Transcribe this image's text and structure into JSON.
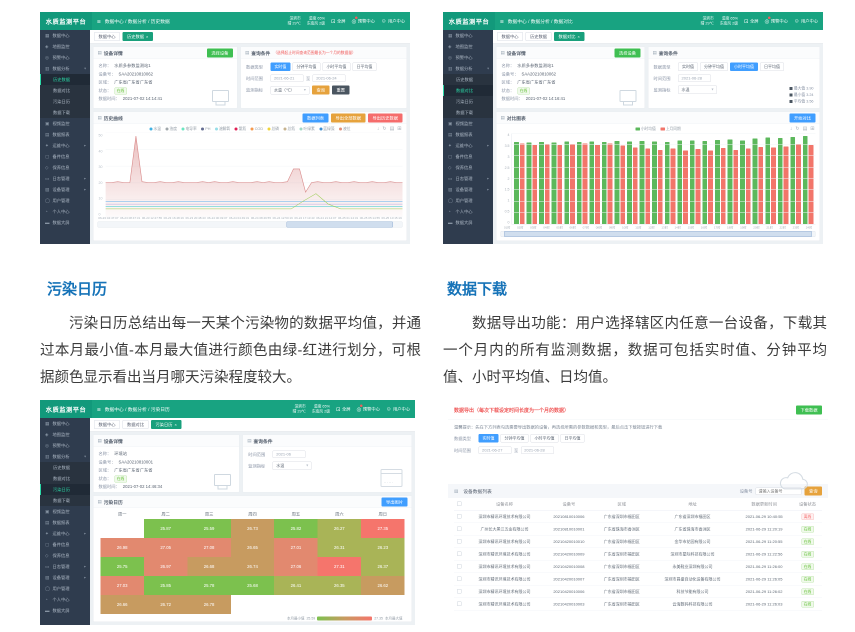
{
  "sections": {
    "left": {
      "title": "污染日历",
      "body": "污染日历总结出每一天某个污染物的数据平均值，并通过本月最小值-本月最大值进行颜色由绿-红进行划分，可根据颜色显示看出当月哪天污染程度较大。"
    },
    "right": {
      "title": "数据下载",
      "body": "数据导出功能：用户选择辖区内任意一台设备，下载其一个月内的所有监测数据，数据可包括实时值、分钟平均值、小时平均值、日均值。"
    }
  },
  "icons": {
    "hamburger": "≡",
    "fullscreen": "⊡",
    "bell": "◎",
    "user": "☺",
    "panel": "▤",
    "caret": "▾",
    "close": "×",
    "tool_download": "↓",
    "tool_refresh": "↻",
    "tool_view": "▤",
    "tool_zoom": "⊞"
  },
  "colors": {
    "brand_green": "#18a381",
    "blue": "#409eff",
    "orange": "#e6a23c",
    "red": "#f56c6c",
    "sidebar": "#2f3c4e",
    "heading_blue": "#1673b8",
    "cells": {
      "green": "#7cc14e",
      "olive": "#a9b457",
      "tan": "#c79b60",
      "salmon": "#e2896f",
      "red": "#f5756c"
    }
  },
  "common": {
    "logo": "水质监测平台",
    "nav_right": {
      "stat1_top": "深圳市",
      "stat1_bottom": "晴 29℃",
      "stat2_top": "湿度 65%",
      "stat2_bottom": "东南风 2级",
      "fullscreen": "全屏",
      "alerts": "预警中心",
      "user": "用户中心"
    },
    "sidebar": [
      {
        "label": "数据中心",
        "glyph": "▦"
      },
      {
        "label": "地图监控",
        "glyph": "◈"
      },
      {
        "label": "预警中心",
        "glyph": "◎"
      },
      {
        "label": "数据分析",
        "glyph": "▥",
        "arrow": true,
        "children": [
          "历史数据",
          "数据对比",
          "污染日历",
          "数据下载"
        ]
      },
      {
        "label": "视频监控",
        "glyph": "▣"
      },
      {
        "label": "数据报表",
        "glyph": "▤"
      },
      {
        "label": "运维中心",
        "glyph": "✦",
        "arrow": true
      },
      {
        "label": "备件信息",
        "glyph": "▢"
      },
      {
        "label": "保养信息",
        "glyph": "◇"
      },
      {
        "label": "日志管理",
        "glyph": "▭",
        "arrow": true
      },
      {
        "label": "设备管理",
        "glyph": "▧",
        "arrow": true
      },
      {
        "label": "用户管理",
        "glyph": "◯"
      },
      {
        "label": "个人中心",
        "glyph": "◔"
      },
      {
        "label": "数据大屏",
        "glyph": "▬"
      }
    ],
    "device_labels": [
      "名称：",
      "设备号：",
      "区域：",
      "状态：",
      "数据时间："
    ],
    "data_type_label": "数据类型",
    "time_range_label": "时间范围",
    "indicator_label": "监测指标",
    "data_types": [
      "实时值",
      "分钟平均值",
      "小时平均值",
      "日平均值"
    ],
    "status_online": "在线",
    "status_offline": "离线",
    "to_label": "至"
  },
  "shot1": {
    "breadcrumb": "数据中心 / 数据分析 / 历史数据",
    "tabs": [
      {
        "label": "数据中心"
      },
      {
        "label": "历史数据",
        "active": true,
        "closable": true
      }
    ],
    "active_child": "历史数据",
    "device": {
      "panel_title": "设备详情",
      "button": "选择设备",
      "name": "水质多参数监测站1",
      "sn": "SAA20210810062",
      "region": "广东省广东省广东省",
      "status": "在线",
      "time": "2021-07-02 14:14:41"
    },
    "query": {
      "panel_title": "查询条件",
      "hint": "（选择起止时间查询范围最长为一个月的数据量）",
      "selected_type": 0,
      "date_start": "2021-06-21",
      "date_end": "2021-06-24",
      "indicator": "水温（℃）",
      "search": "查询",
      "reset": "重置"
    },
    "chart_panel": {
      "title": "历史曲线",
      "buttons": [
        {
          "label": "数据列表",
          "color": "blue"
        },
        {
          "label": "导出全部数据",
          "color": "orange"
        },
        {
          "label": "导出历史数据",
          "color": "red"
        }
      ]
    },
    "chart_data": {
      "type": "line",
      "legend": [
        {
          "label": "水温",
          "color": "#3fb1e3"
        },
        {
          "label": "浊度",
          "color": "#a0a7ab"
        },
        {
          "label": "电导率",
          "color": "#6be6c1"
        },
        {
          "label": "PH",
          "color": "#626c91"
        },
        {
          "label": "溶解氧",
          "color": "#96dee8"
        },
        {
          "label": "氨氮",
          "color": "#e01f54"
        },
        {
          "label": "COD",
          "color": "#f5994e"
        },
        {
          "label": "总磷",
          "color": "#f0d43a"
        },
        {
          "label": "总氮",
          "color": "#c6b38e"
        },
        {
          "label": "叶绿素",
          "color": "#a0d8c5"
        },
        {
          "label": "蓝绿藻",
          "color": "#3f8fd1"
        },
        {
          "label": "液位",
          "color": "#e08f7a"
        }
      ],
      "y_ticks": [
        "50",
        "40",
        "30",
        "20",
        "10",
        "0"
      ],
      "x_labels": [
        "06-23 04:47:07",
        "06-23 08:47:31",
        "06-23 12:47:55",
        "06-23 16:48:19",
        "06-23 20:48:43",
        "06-24 00:49:07",
        "06-24 04:49:31",
        "06-24 08:49:55",
        "06-24 12:50:19",
        "06-24 17:13:43",
        "06-24 21:14:07",
        "06-25 01:14:31",
        "06-25 05:14:55",
        "06-25 10:15:19"
      ],
      "main": {
        "color": "#d98a8a",
        "area_from": "rgba(217,138,138,0.55)",
        "area_to": "rgba(217,138,138,0.04)",
        "values": [
          40,
          40,
          41,
          40,
          40,
          98,
          41,
          40,
          40,
          41,
          40,
          40,
          41,
          40,
          40,
          40,
          41,
          40,
          41,
          40,
          40,
          41,
          40,
          40,
          40,
          41,
          40,
          41,
          40,
          40,
          41,
          57,
          57,
          28,
          40,
          41,
          40,
          40,
          41,
          40,
          40,
          41,
          40,
          40,
          41,
          40,
          40,
          41,
          40,
          40
        ]
      },
      "sub_lines": [
        {
          "color": "#5ab1ef",
          "level": 16
        },
        {
          "color": "#b6a2de",
          "level": 13
        },
        {
          "color": "#2ec7c9",
          "level": 10
        }
      ],
      "bump_line": {
        "color": "#9acd50",
        "values": [
          7,
          7,
          7,
          7,
          7,
          7,
          7,
          7,
          7,
          7,
          7,
          7,
          7,
          7,
          7,
          7,
          17,
          26,
          13,
          7,
          7,
          7,
          7,
          7,
          7
        ]
      },
      "zoom": [
        62,
        97
      ]
    }
  },
  "shot2": {
    "breadcrumb": "数据中心 / 数据分析 / 数据对比",
    "tabs": [
      {
        "label": "数据中心"
      },
      {
        "label": "历史数据"
      },
      {
        "label": "数据对比",
        "active": true,
        "closable": true
      }
    ],
    "active_child": "数据对比",
    "device": {
      "panel_title": "设备详情",
      "button": "选择设备",
      "name": "水质多参数监测站1",
      "sn": "SAA20210810062",
      "region": "广东省广东省广东省",
      "status": "在线",
      "time": "2021-07-02 14:16:41"
    },
    "query": {
      "panel_title": "查询条件",
      "selected_type": 2,
      "date": "2021-06-28",
      "indicator": "水温"
    },
    "stats": [
      {
        "label": "最大值",
        "value": "3.90"
      },
      {
        "label": "最小值",
        "value": "3.24"
      },
      {
        "label": "平均值",
        "value": "3.56"
      }
    ],
    "chart_panel": {
      "title": "对比图表",
      "button": "开始对比"
    },
    "chart_data": {
      "type": "bar",
      "legend": [
        {
          "label": "小时均值",
          "color": "#5cb85c"
        },
        {
          "label": "上月同期",
          "color": "#f2756a"
        }
      ],
      "ylim": [
        0,
        4
      ],
      "y_ticks": [
        "4",
        "3.5",
        "3",
        "2.5",
        "2",
        "1.5",
        "1",
        "0.5",
        "0"
      ],
      "categories": [
        "01时",
        "02时",
        "03时",
        "04时",
        "05时",
        "06时",
        "07时",
        "08时",
        "09时",
        "10时",
        "11时",
        "12时",
        "13时",
        "14时",
        "15时",
        "16时",
        "17时",
        "18时",
        "19时",
        "20时",
        "21时",
        "22时",
        "23时",
        "24时"
      ],
      "series": [
        {
          "name": "小时均值",
          "color": "#5cb85c",
          "values": [
            3.62,
            3.6,
            3.63,
            3.61,
            3.64,
            3.62,
            3.65,
            3.63,
            3.66,
            3.64,
            3.67,
            3.65,
            3.62,
            3.68,
            3.7,
            3.66,
            3.72,
            3.74,
            3.7,
            3.78,
            3.82,
            3.8,
            3.85,
            3.9
          ]
        },
        {
          "name": "上月同期",
          "color": "#f2756a",
          "values": [
            3.55,
            3.52,
            3.54,
            3.5,
            3.53,
            3.55,
            3.52,
            3.56,
            3.48,
            3.38,
            3.34,
            3.28,
            3.33,
            3.26,
            3.31,
            3.24,
            3.36,
            3.28,
            3.34,
            3.4,
            3.38,
            3.42,
            3.54,
            3.5
          ]
        }
      ],
      "zoom": [
        1,
        99
      ]
    }
  },
  "shot3": {
    "breadcrumb": "数据中心 / 数据分析 / 污染日历",
    "tabs": [
      {
        "label": "数据中心"
      },
      {
        "label": "数据对比"
      },
      {
        "label": "污染日历",
        "active": true,
        "closable": true
      }
    ],
    "active_child": "污染日历",
    "device": {
      "panel_title": "设备详情",
      "name": "环境站",
      "sn": "SAA20210810001",
      "region": "广东省广东省广东省",
      "status": "在线",
      "time": "2021-07-02 14:46:34"
    },
    "query": {
      "panel_title": "查询条件",
      "month": "2021-06",
      "indicator": "水温"
    },
    "cal_panel": {
      "title": "污染日历",
      "button": "导出图片"
    },
    "calendar": {
      "headers": [
        "周一",
        "周二",
        "周三",
        "周四",
        "周五",
        "周六",
        "周日"
      ],
      "rows": [
        [
          null,
          {
            "v": "25.87",
            "c": "green"
          },
          {
            "v": "25.59",
            "c": "green"
          },
          {
            "v": "26.73",
            "c": "tan"
          },
          {
            "v": "25.82",
            "c": "green"
          },
          {
            "v": "26.27",
            "c": "olive"
          },
          {
            "v": "27.35",
            "c": "red"
          }
        ],
        [
          {
            "v": "26.98",
            "c": "salmon"
          },
          {
            "v": "27.05",
            "c": "salmon"
          },
          {
            "v": "27.08",
            "c": "salmon"
          },
          {
            "v": "26.65",
            "c": "tan"
          },
          {
            "v": "27.01",
            "c": "salmon"
          },
          {
            "v": "26.31",
            "c": "olive"
          },
          {
            "v": "26.23",
            "c": "olive"
          }
        ],
        [
          {
            "v": "25.75",
            "c": "green"
          },
          {
            "v": "26.97",
            "c": "salmon"
          },
          {
            "v": "26.68",
            "c": "tan"
          },
          {
            "v": "26.74",
            "c": "tan"
          },
          {
            "v": "27.06",
            "c": "salmon"
          },
          {
            "v": "27.31",
            "c": "red"
          },
          {
            "v": "26.37",
            "c": "olive"
          }
        ],
        [
          {
            "v": "27.03",
            "c": "salmon"
          },
          {
            "v": "25.85",
            "c": "green"
          },
          {
            "v": "25.78",
            "c": "green"
          },
          {
            "v": "25.68",
            "c": "green"
          },
          {
            "v": "26.41",
            "c": "olive"
          },
          {
            "v": "26.35",
            "c": "olive"
          },
          {
            "v": "26.62",
            "c": "tan"
          }
        ],
        [
          {
            "v": "26.66",
            "c": "tan"
          },
          {
            "v": "26.72",
            "c": "tan"
          },
          {
            "v": "26.78",
            "c": "tan"
          },
          null,
          null,
          null,
          null
        ]
      ],
      "legend": {
        "min_label": "本月最小值",
        "max_label": "本月最大值",
        "min_value": "25.59",
        "max_value": "27.35"
      }
    }
  },
  "shot4": {
    "title": "数据导出（每次下载设定时间长度为一个月的数据）",
    "download_button": "下载数据",
    "note": "温馨提示：先在下方列表勾选需要导出数据的设备，再选择所需的参数数据和类型，最后点击下载按钮进行下载",
    "query": {
      "selected_type": 0,
      "date_start": "2021-06-27",
      "date_end": "2021-06-28"
    },
    "list": {
      "title": "设备数据列表",
      "search_label": "设备号",
      "search_placeholder": "请输入设备号",
      "search_button": "查询",
      "columns": [
        "设备名称",
        "设备号",
        "区域",
        "地址",
        "数据更新时间",
        "设备状态"
      ],
      "rows": [
        {
          "name": "深圳市精讯环境技术有限公司",
          "sn": "20210810010006",
          "region": "广东省深圳市福田区",
          "addr": "广东省深圳市福田区",
          "time": "2021-06-29 10:40:55",
          "status": "离线"
        },
        {
          "name": "广州长大黑江五金有限公司",
          "sn": "20210810010001",
          "region": "广东省珠海市香洲区",
          "addr": "广东省珠海市香洲区",
          "time": "2021-06-29 11:20:19",
          "status": "在线"
        },
        {
          "name": "深圳市精讯环境技术有限公司",
          "sn": "20210420010010",
          "region": "广东省深圳市福田区",
          "addr": "金华市花园有限公司",
          "time": "2021-06-29 11:20:55",
          "status": "在线"
        },
        {
          "name": "深圳市精讯环境技术有限公司",
          "sn": "20210420010009",
          "region": "广东省深圳市福田区",
          "addr": "深圳市星际科技有限公司",
          "time": "2021-06-29 11:22:56",
          "status": "在线"
        },
        {
          "name": "深圳市精讯环境技术有限公司",
          "sn": "20210420010008",
          "region": "广东省深圳市福田区",
          "addr": "永美鞋业深圳有限公司",
          "time": "2021-06-29 11:26:00",
          "status": "在线"
        },
        {
          "name": "深圳市精讯环境技术有限公司",
          "sn": "20210420010007",
          "region": "广东省深圳市福田区",
          "addr": "深圳市昌盛自动化设备有限公司",
          "time": "2021-06-29 11:26:05",
          "status": "在线"
        },
        {
          "name": "深圳市精讯环境技术有限公司",
          "sn": "20210420010006",
          "region": "广东省深圳市福田区",
          "addr": "科技节能有限公司",
          "time": "2021-06-29 11:26:02",
          "status": "在线"
        },
        {
          "name": "深圳市精讯环境技术有限公司",
          "sn": "20210420010003",
          "region": "广东省深圳市福田区",
          "addr": "云海数码科技有限公司",
          "time": "2021-06-29 11:26:03",
          "status": "在线"
        }
      ]
    }
  }
}
